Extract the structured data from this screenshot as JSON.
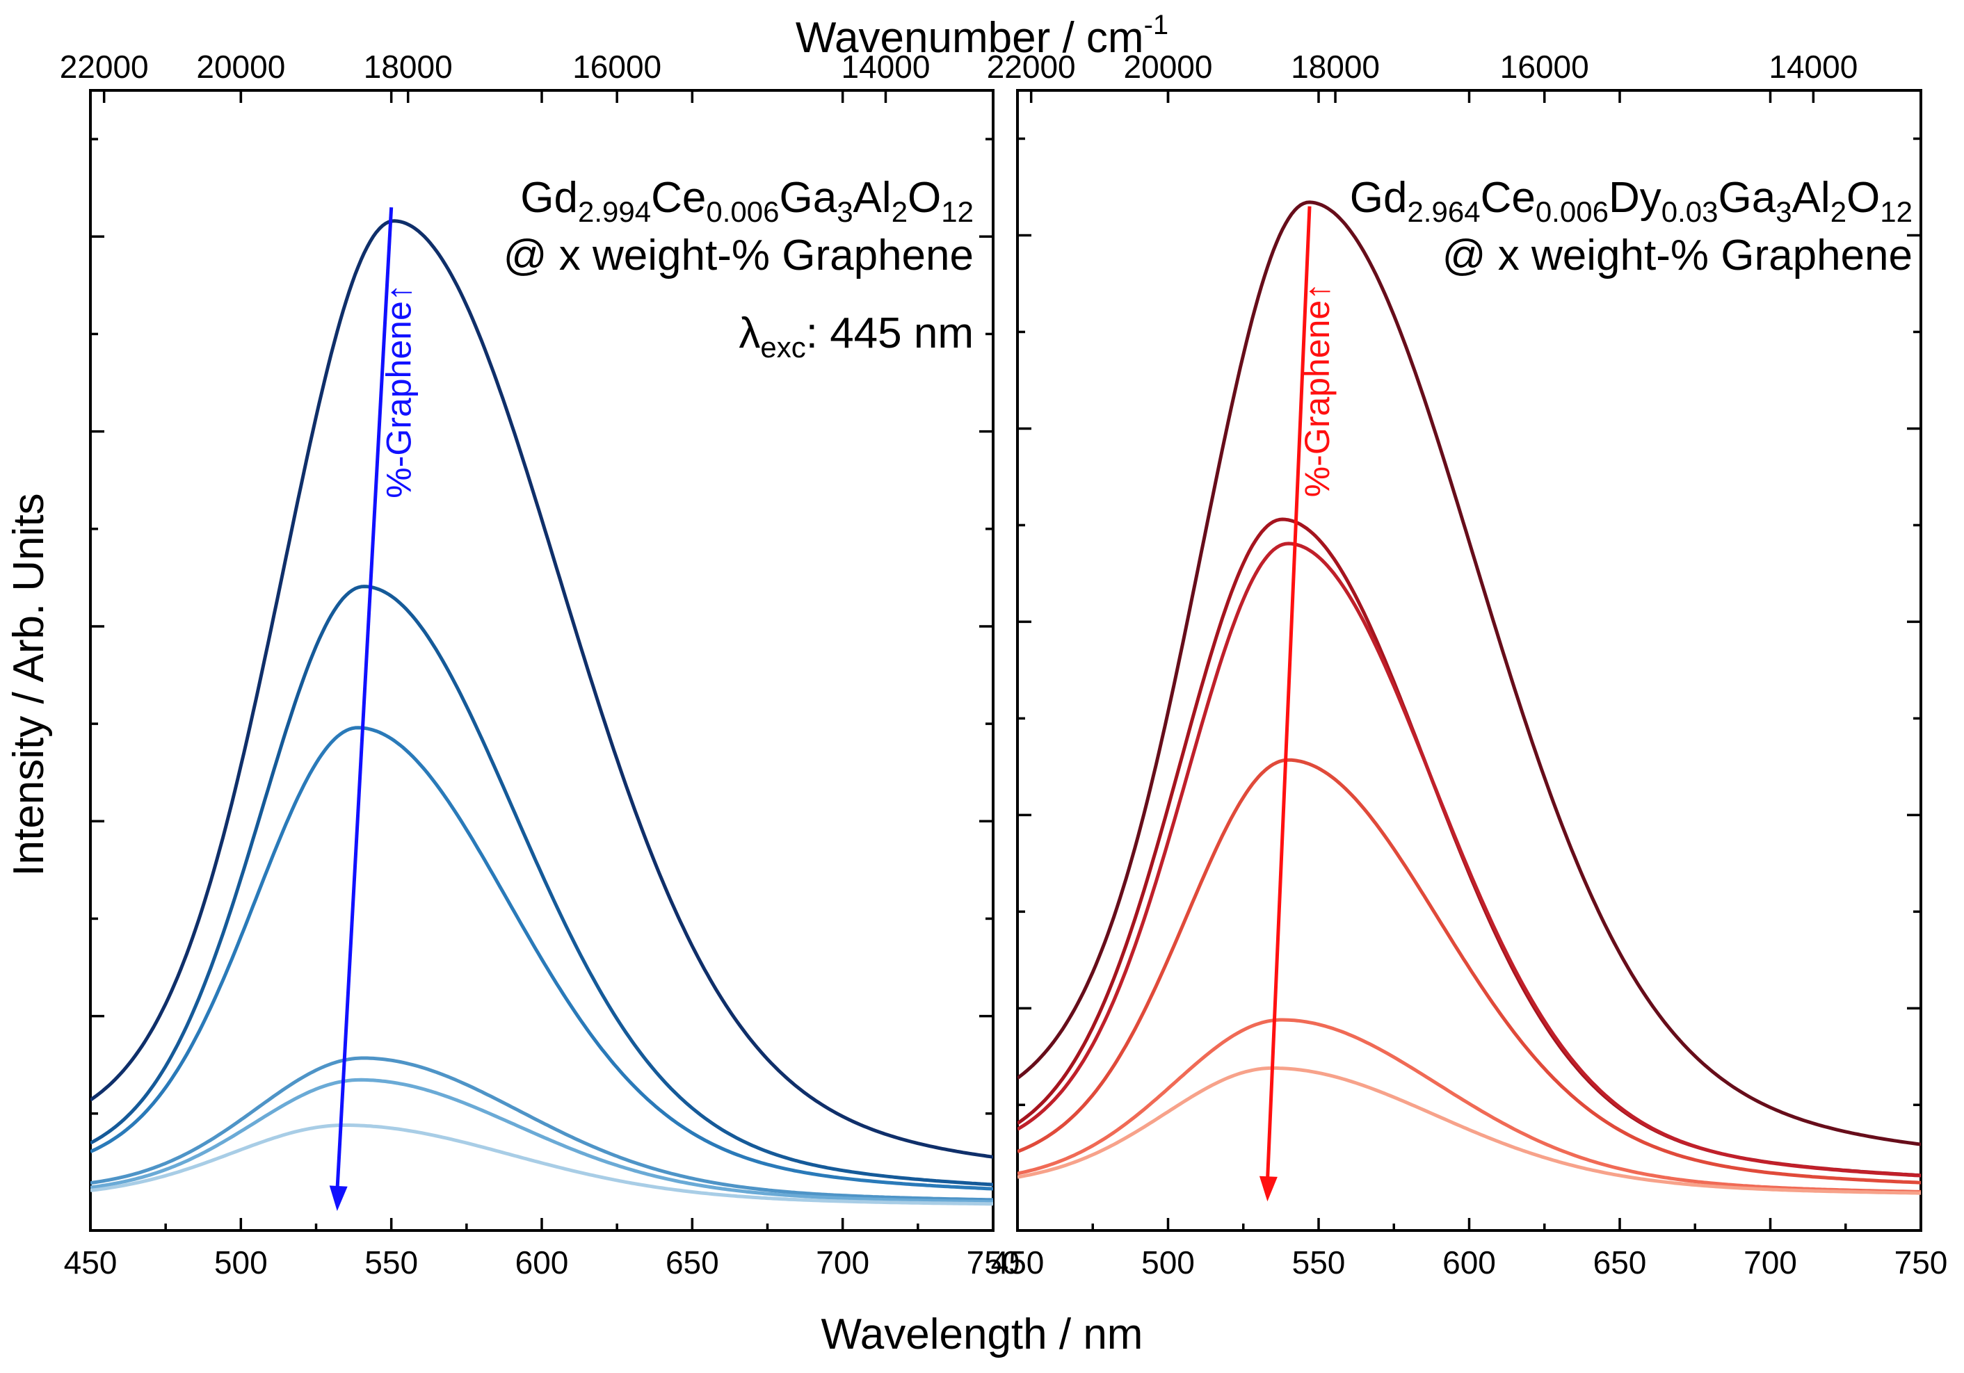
{
  "chart_data": [
    {
      "type": "line",
      "panel": "left",
      "title_parts": [
        {
          "t": "Gd",
          "s": false
        },
        {
          "t": "2.994",
          "s": true
        },
        {
          "t": "Ce",
          "s": false
        },
        {
          "t": "0.006",
          "s": true
        },
        {
          "t": "Ga",
          "s": false
        },
        {
          "t": "3",
          "s": true
        },
        {
          "t": "Al",
          "s": false
        },
        {
          "t": "2",
          "s": true
        },
        {
          "t": "O",
          "s": false
        },
        {
          "t": "12",
          "s": true
        }
      ],
      "subtitle": "@ x weight-% Graphene",
      "excitation": {
        "symbol": "λ",
        "sub": "exc",
        "text": ": 445 nm"
      },
      "arrow_label": "%-Graphene↑",
      "arrow_color": "#1010ff",
      "arrow": {
        "x_start": 550,
        "y_start": 1.03,
        "x_end": 532,
        "y_end": 0.0
      },
      "xlabel": "Wavelength / nm",
      "ylabel": "Intensity / Arb. Units",
      "x2label": "Wavenumber / cm",
      "x2label_sup": "-1",
      "xlim": [
        450,
        750
      ],
      "ylim": [
        -0.02,
        1.15
      ],
      "xticks": [
        450,
        500,
        550,
        600,
        650,
        700,
        750
      ],
      "x2ticks": [
        22000,
        20000,
        18000,
        16000,
        14000
      ],
      "yticks_major": [
        0.2,
        0.4,
        0.6,
        0.8,
        1.0
      ],
      "yticks_minor": [
        0.1,
        0.3,
        0.5,
        0.7,
        0.9,
        1.1
      ],
      "series": [
        {
          "name": "s1",
          "color": "#0f2f6a",
          "peak": 551,
          "amp": 0.985,
          "sigma_l": 37,
          "sigma_r": 55,
          "tail": 0.04
        },
        {
          "name": "s2",
          "color": "#155a99",
          "peak": 541,
          "amp": 0.625,
          "sigma_l": 34,
          "sigma_r": 50,
          "tail": 0.02
        },
        {
          "name": "s3",
          "color": "#2a7ab9",
          "peak": 539,
          "amp": 0.48,
          "sigma_l": 34,
          "sigma_r": 50,
          "tail": 0.02
        },
        {
          "name": "s4",
          "color": "#4e94c7",
          "peak": 541,
          "amp": 0.145,
          "sigma_l": 36,
          "sigma_r": 52,
          "tail": 0.015
        },
        {
          "name": "s5",
          "color": "#6aaad6",
          "peak": 540,
          "amp": 0.125,
          "sigma_l": 36,
          "sigma_r": 52,
          "tail": 0.012
        },
        {
          "name": "s6",
          "color": "#a8cde6",
          "peak": 535,
          "amp": 0.08,
          "sigma_l": 38,
          "sigma_r": 55,
          "tail": 0.01
        }
      ]
    },
    {
      "type": "line",
      "panel": "right",
      "title_parts": [
        {
          "t": "Gd",
          "s": false
        },
        {
          "t": "2.964",
          "s": true
        },
        {
          "t": "Ce",
          "s": false
        },
        {
          "t": "0.006",
          "s": true
        },
        {
          "t": "Dy",
          "s": false
        },
        {
          "t": "0.03",
          "s": true
        },
        {
          "t": "Ga",
          "s": false
        },
        {
          "t": "3",
          "s": true
        },
        {
          "t": "Al",
          "s": false
        },
        {
          "t": "2",
          "s": true
        },
        {
          "t": "O",
          "s": false
        },
        {
          "t": "12",
          "s": true
        }
      ],
      "subtitle": "@ x weight-% Graphene",
      "arrow_label": "%-Graphene↑",
      "arrow_color": "#ff1010",
      "arrow": {
        "x_start": 547,
        "y_start": 1.03,
        "x_end": 533,
        "y_end": 0.0
      },
      "xlabel": "Wavelength / nm",
      "ylabel": "",
      "xlim": [
        450,
        750
      ],
      "ylim": [
        -0.03,
        1.15
      ],
      "xticks": [
        450,
        500,
        550,
        600,
        650,
        700,
        750
      ],
      "x2ticks": [
        22000,
        20000,
        18000,
        16000,
        14000
      ],
      "yticks_major": [
        0.2,
        0.4,
        0.6,
        0.8,
        1.0
      ],
      "yticks_minor": [
        0.1,
        0.3,
        0.5,
        0.7,
        0.9,
        1.1
      ],
      "series": [
        {
          "name": "r1",
          "color": "#670d1a",
          "peak": 547,
          "amp": 0.995,
          "sigma_l": 36,
          "sigma_r": 55,
          "tail": 0.05
        },
        {
          "name": "r2",
          "color": "#a5141e",
          "peak": 538,
          "amp": 0.69,
          "sigma_l": 34,
          "sigma_r": 48,
          "tail": 0.02
        },
        {
          "name": "r3",
          "color": "#c0202a",
          "peak": 540,
          "amp": 0.665,
          "sigma_l": 34,
          "sigma_r": 48,
          "tail": 0.02
        },
        {
          "name": "r4",
          "color": "#e04a3a",
          "peak": 540,
          "amp": 0.445,
          "sigma_l": 34,
          "sigma_r": 50,
          "tail": 0.015
        },
        {
          "name": "r5",
          "color": "#f06a55",
          "peak": 538,
          "amp": 0.18,
          "sigma_l": 36,
          "sigma_r": 52,
          "tail": 0.01
        },
        {
          "name": "r6",
          "color": "#f7a28a",
          "peak": 535,
          "amp": 0.13,
          "sigma_l": 36,
          "sigma_r": 54,
          "tail": 0.01
        }
      ]
    }
  ]
}
